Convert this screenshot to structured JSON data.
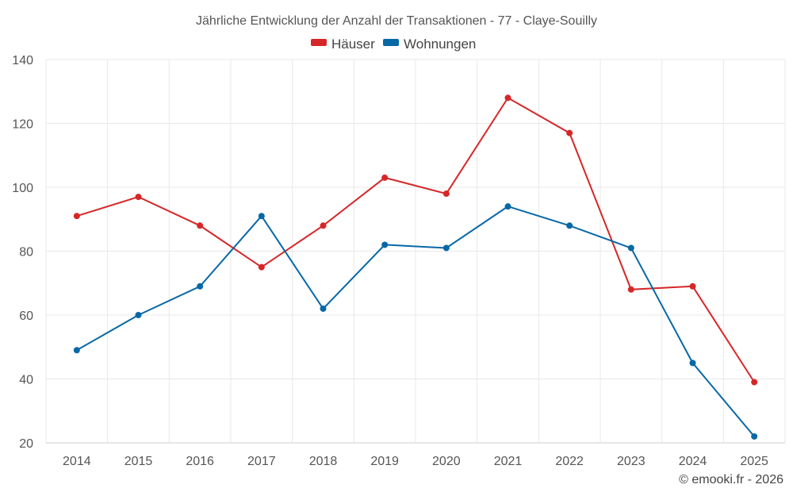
{
  "chart_data": {
    "type": "line",
    "title": "Jährliche Entwicklung der Anzahl der Transaktionen - 77 - Claye-Souilly",
    "categories": [
      "2014",
      "2015",
      "2016",
      "2017",
      "2018",
      "2019",
      "2020",
      "2021",
      "2022",
      "2023",
      "2024",
      "2025"
    ],
    "series": [
      {
        "name": "Häuser",
        "color": "#d62728",
        "values": [
          91,
          97,
          88,
          75,
          88,
          103,
          98,
          128,
          117,
          68,
          69,
          39
        ]
      },
      {
        "name": "Wohnungen",
        "color": "#0868a6",
        "values": [
          49,
          60,
          69,
          91,
          62,
          82,
          81,
          94,
          88,
          81,
          45,
          22
        ]
      }
    ],
    "ylim": [
      20,
      140
    ],
    "yticks": [
      20,
      40,
      60,
      80,
      100,
      120,
      140
    ],
    "xlabel": "",
    "ylabel": "",
    "grid": true,
    "legend": "top-center"
  },
  "credit": "© emooki.fr - 2026"
}
